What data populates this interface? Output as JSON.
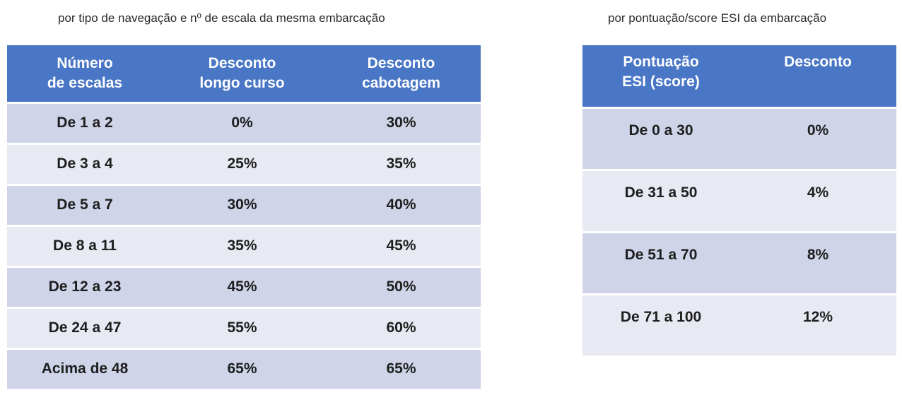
{
  "left": {
    "caption": "por tipo de navegação e nº de escala da mesma embarcação",
    "headers": [
      [
        "Número",
        "de escalas"
      ],
      [
        "Desconto",
        "longo curso"
      ],
      [
        "Desconto",
        "cabotagem"
      ]
    ],
    "rows": [
      [
        "De 1 a 2",
        "0%",
        "30%"
      ],
      [
        "De 3 a 4",
        "25%",
        "35%"
      ],
      [
        "De 5 a 7",
        "30%",
        "40%"
      ],
      [
        "De 8 a 11",
        "35%",
        "45%"
      ],
      [
        "De 12 a 23",
        "45%",
        "50%"
      ],
      [
        "De 24 a 47",
        "55%",
        "60%"
      ],
      [
        "Acima de 48",
        "65%",
        "65%"
      ]
    ]
  },
  "right": {
    "caption": "por pontuação/score ESI da embarcação",
    "headers": [
      [
        "Pontuação",
        "ESI (score)"
      ],
      [
        "Desconto"
      ]
    ],
    "rows": [
      [
        "De 0 a 30",
        "0%"
      ],
      [
        "De 31 a 50",
        "4%"
      ],
      [
        "De 51 a 70",
        "8%"
      ],
      [
        "De 71 a 100",
        "12%"
      ]
    ]
  },
  "colors": {
    "header_bg": "#4a76c6",
    "row_dark": "#cfd4e8",
    "row_light": "#e8eaf3"
  }
}
